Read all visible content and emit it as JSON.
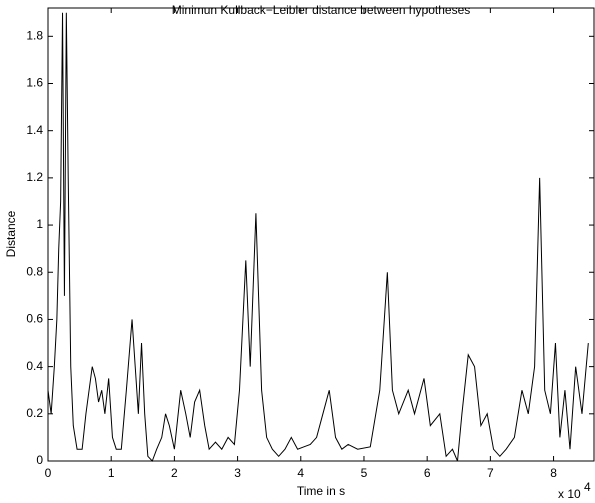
{
  "chart_data": {
    "type": "line",
    "title": "Minimun Kullback−Leibler distance between hypotheses",
    "x_label": "Time in s",
    "y_label": "Distance",
    "x_multiplier": {
      "base": "x 10",
      "exponent": "4"
    },
    "xlim": [
      0,
      86400
    ],
    "ylim": [
      0,
      1.92
    ],
    "xticks": [
      {
        "value": 0,
        "label": "0"
      },
      {
        "value": 10000,
        "label": "1"
      },
      {
        "value": 20000,
        "label": "2"
      },
      {
        "value": 30000,
        "label": "3"
      },
      {
        "value": 40000,
        "label": "4"
      },
      {
        "value": 50000,
        "label": "5"
      },
      {
        "value": 60000,
        "label": "6"
      },
      {
        "value": 70000,
        "label": "7"
      },
      {
        "value": 80000,
        "label": "8"
      }
    ],
    "yticks": [
      0,
      0.2,
      0.4,
      0.6,
      0.8,
      1,
      1.2,
      1.4,
      1.6,
      1.8
    ],
    "grid": false,
    "series": [
      {
        "color": "#000000",
        "x": [
          0,
          500,
          1000,
          1400,
          1700,
          2000,
          2300,
          2600,
          2900,
          3200,
          3600,
          4000,
          4600,
          5400,
          6000,
          6500,
          7000,
          7500,
          8000,
          8500,
          9000,
          9600,
          10200,
          10800,
          11600,
          12400,
          13300,
          13800,
          14300,
          14800,
          15300,
          15800,
          16500,
          17200,
          18000,
          18600,
          19200,
          20000,
          21000,
          21800,
          22500,
          23200,
          24000,
          24800,
          25500,
          26500,
          27500,
          28500,
          29500,
          30300,
          31300,
          32000,
          32900,
          33800,
          34600,
          35500,
          36500,
          37500,
          38500,
          39500,
          40500,
          41500,
          42500,
          43500,
          44500,
          45500,
          46500,
          47500,
          49000,
          51000,
          52500,
          53700,
          54500,
          55500,
          57000,
          58000,
          59500,
          60500,
          62000,
          63000,
          64000,
          64800,
          65500,
          66500,
          67500,
          68500,
          69500,
          70500,
          71500,
          72500,
          73800,
          75000,
          76000,
          77000,
          77800,
          78600,
          79500,
          80300,
          81000,
          81800,
          82600,
          83500,
          84500,
          85500
        ],
        "values": [
          0.3,
          0.2,
          0.4,
          0.6,
          0.9,
          1.1,
          1.9,
          0.7,
          1.9,
          1.2,
          0.4,
          0.15,
          0.05,
          0.05,
          0.2,
          0.3,
          0.4,
          0.35,
          0.25,
          0.3,
          0.2,
          0.35,
          0.1,
          0.05,
          0.05,
          0.3,
          0.6,
          0.4,
          0.2,
          0.5,
          0.2,
          0.02,
          0,
          0.05,
          0.1,
          0.2,
          0.15,
          0.05,
          0.3,
          0.2,
          0.1,
          0.25,
          0.3,
          0.15,
          0.05,
          0.08,
          0.05,
          0.1,
          0.07,
          0.3,
          0.85,
          0.4,
          1.05,
          0.3,
          0.1,
          0.05,
          0.02,
          0.05,
          0.1,
          0.05,
          0.06,
          0.07,
          0.1,
          0.2,
          0.3,
          0.1,
          0.05,
          0.07,
          0.05,
          0.06,
          0.3,
          0.8,
          0.3,
          0.2,
          0.3,
          0.2,
          0.35,
          0.15,
          0.2,
          0.02,
          0.05,
          0,
          0.2,
          0.45,
          0.4,
          0.15,
          0.2,
          0.05,
          0.02,
          0.05,
          0.1,
          0.3,
          0.2,
          0.4,
          1.2,
          0.3,
          0.2,
          0.5,
          0.1,
          0.3,
          0.05,
          0.4,
          0.2,
          0.5
        ]
      }
    ]
  }
}
